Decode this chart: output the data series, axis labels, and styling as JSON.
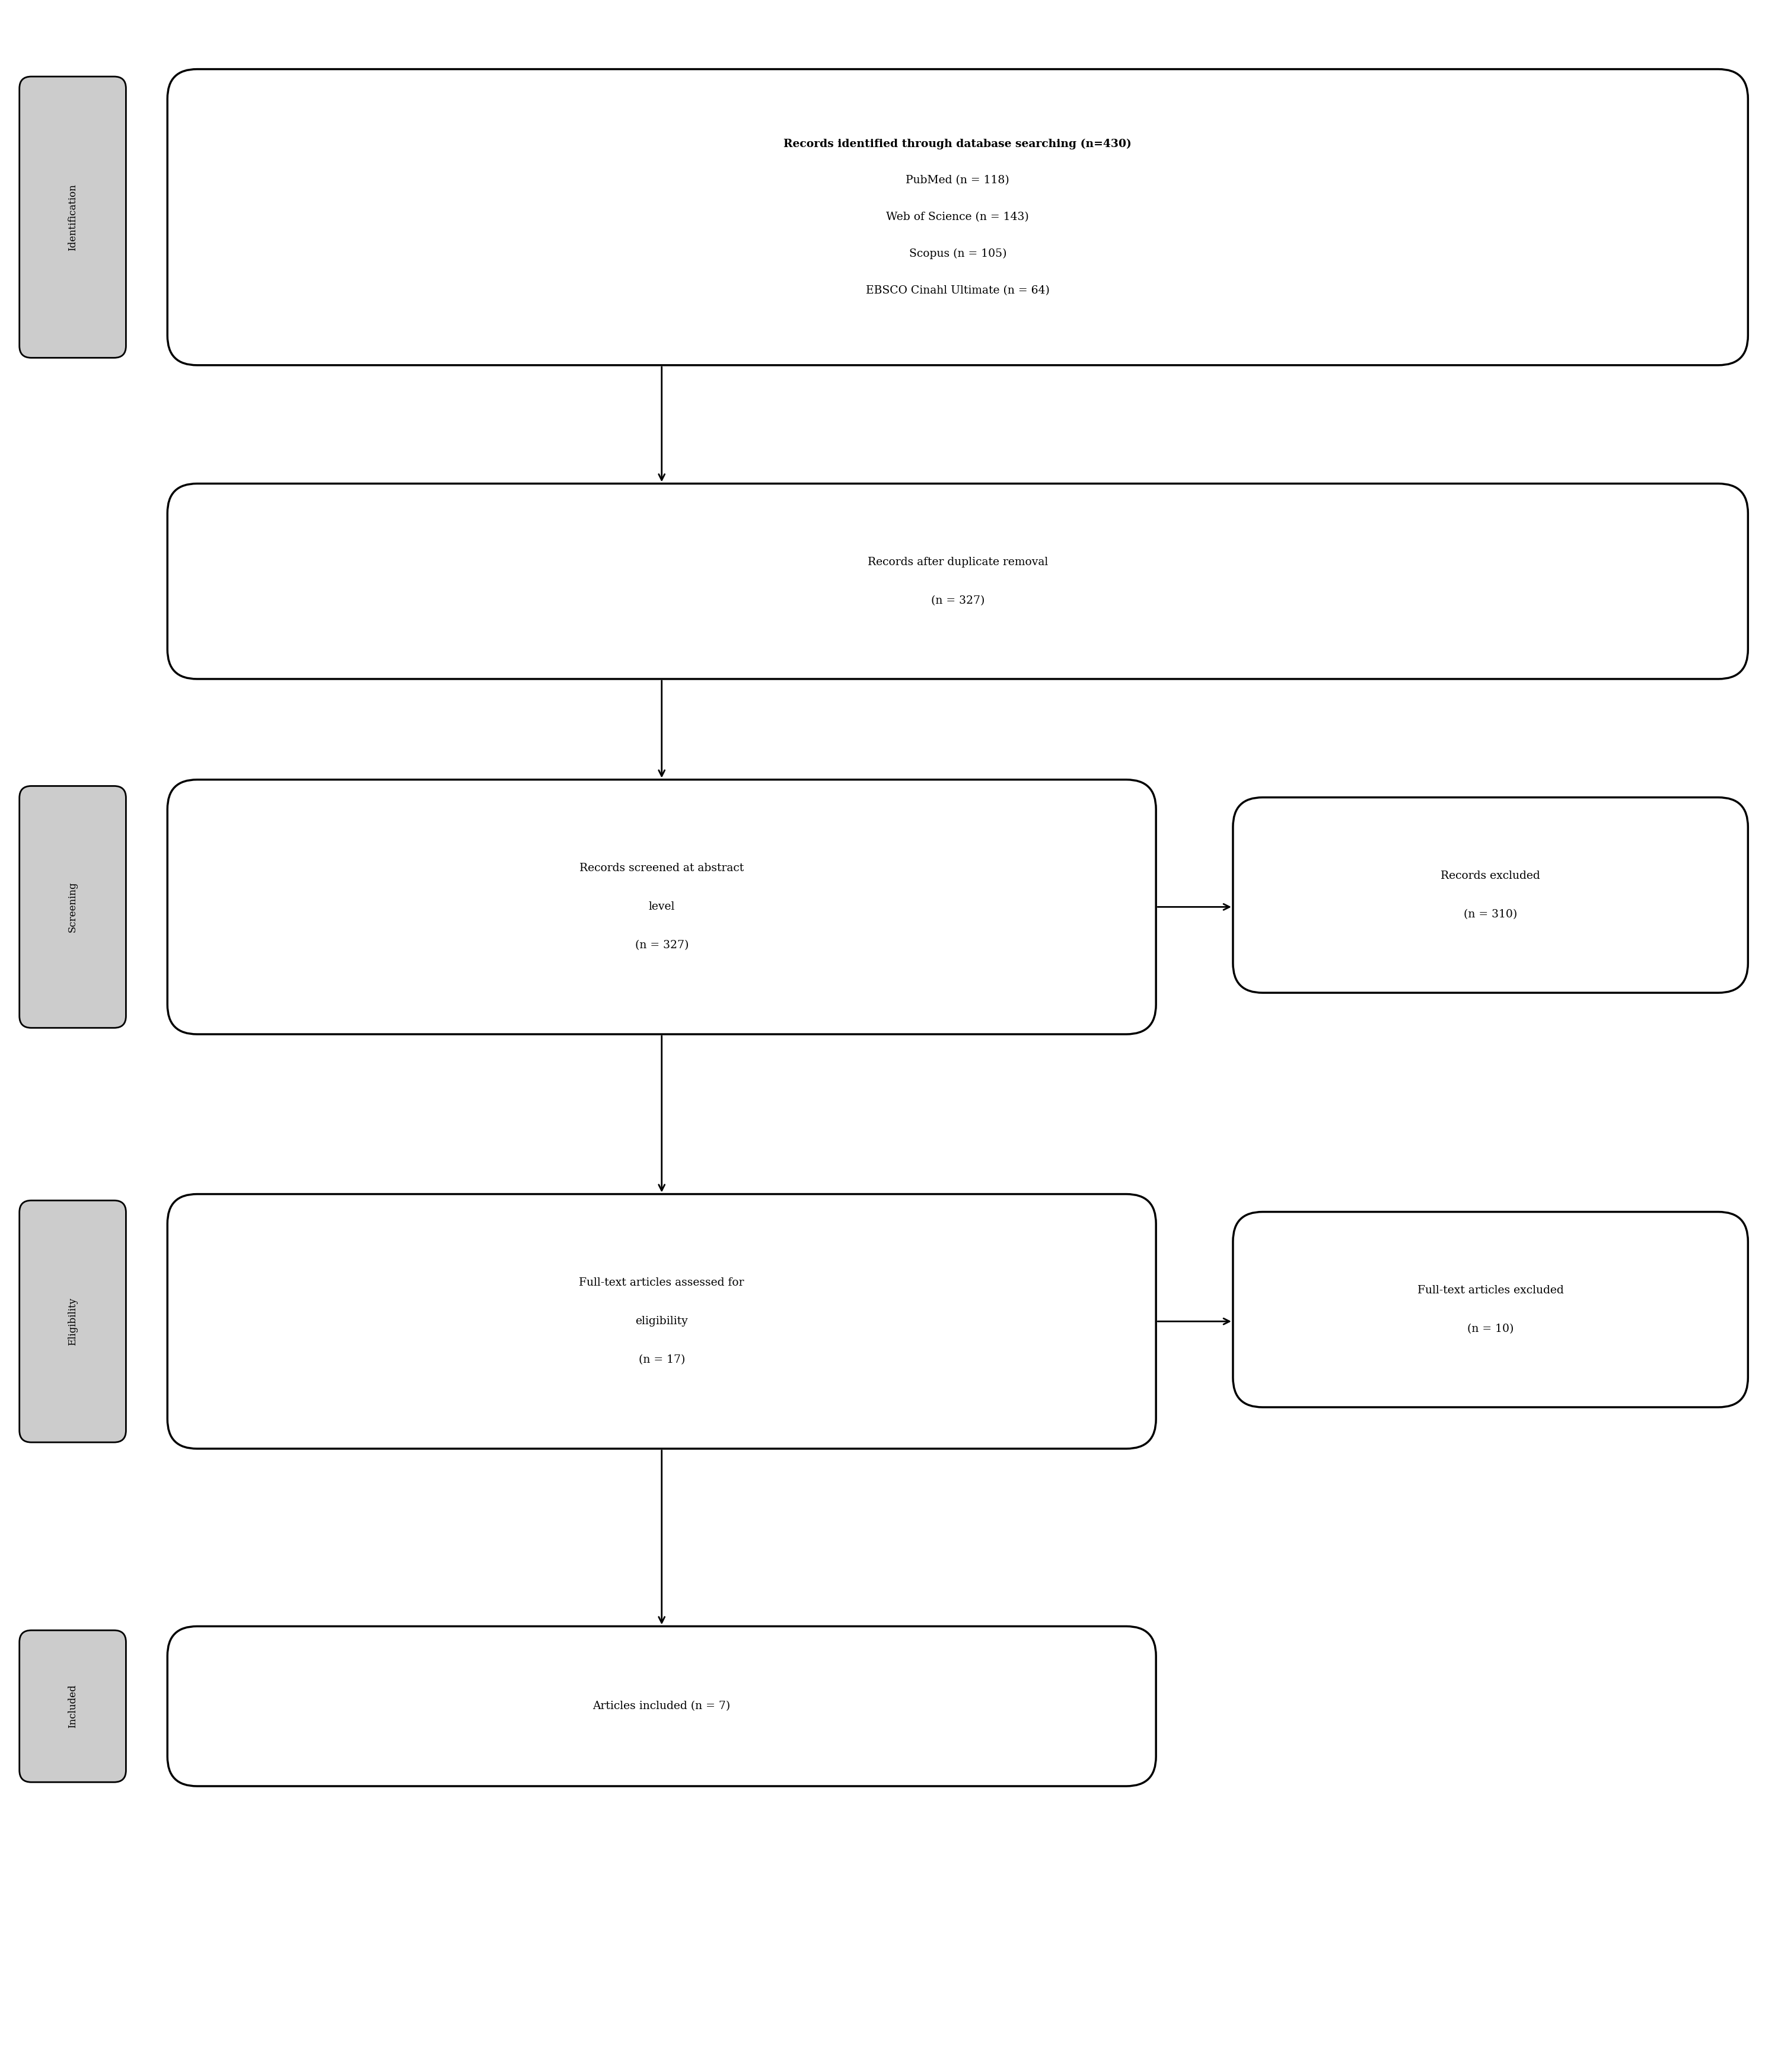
{
  "bg_color": "#ffffff",
  "box_edge_color": "#000000",
  "box_fill_color": "#ffffff",
  "sidebar_fill_color": "#cccccc",
  "sidebar_edge_color": "#000000",
  "box1_title": "Records identified through database searching (n=430)",
  "box1_lines": [
    "PubMed (n = 118)",
    "Web of Science (n = 143)",
    "Scopus (n = 105)",
    "EBSCO Cinahl Ultimate (n = 64)"
  ],
  "box2_lines": [
    "Records after duplicate removal",
    "(n = 327)"
  ],
  "box3_left_lines": [
    "Records screened at abstract",
    "level",
    "(n = 327)"
  ],
  "box3_right_lines": [
    "Records excluded",
    "(n = 310)"
  ],
  "box4_left_lines": [
    "Full-text articles assessed for",
    "eligibility",
    "(n = 17)"
  ],
  "box4_right_lines": [
    "Full-text articles excluded",
    "(n = 10)"
  ],
  "box5_lines": [
    "Articles included (n = 7)"
  ],
  "sidebar_labels": [
    "Identification",
    "Screening",
    "Eligibility",
    "Included"
  ]
}
